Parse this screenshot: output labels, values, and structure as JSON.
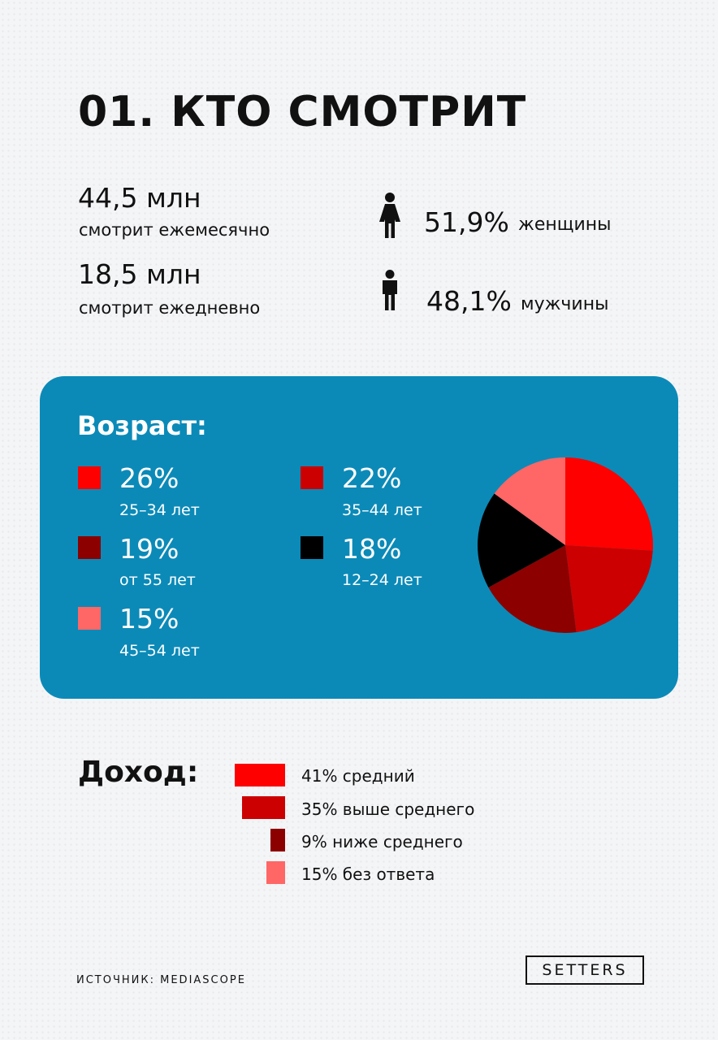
{
  "title": "01. КТО СМОТРИТ",
  "reach": {
    "monthly": {
      "value": "44,5 млн",
      "label": "смотрит ежемесячно"
    },
    "daily": {
      "value": "18,5 млн",
      "label": "смотрит ежедневно"
    }
  },
  "gender": {
    "female": {
      "pct": "51,9%",
      "label": "женщины",
      "icon": "woman-icon"
    },
    "male": {
      "pct": "48,1%",
      "label": "мужчины",
      "icon": "man-icon"
    }
  },
  "age": {
    "title": "Возраст:",
    "items": [
      {
        "pct": "26%",
        "range": "25–34 лет",
        "color": "#ff0000"
      },
      {
        "pct": "22%",
        "range": "35–44 лет",
        "color": "#cc0000"
      },
      {
        "pct": "19%",
        "range": "от 55 лет",
        "color": "#8c0000"
      },
      {
        "pct": "18%",
        "range": "12–24 лет",
        "color": "#000000"
      },
      {
        "pct": "15%",
        "range": "45–54 лет",
        "color": "#ff6666"
      }
    ]
  },
  "income": {
    "title": "Доход:",
    "items": [
      {
        "label": "41% средний",
        "color": "#ff0000"
      },
      {
        "label": "35% выше среднего",
        "color": "#cc0000"
      },
      {
        "label": "9% ниже среднего",
        "color": "#8c0000"
      },
      {
        "label": "15% без ответа",
        "color": "#ff6666"
      }
    ]
  },
  "source": "ИСТОЧНИК: MEDIASCOPE",
  "logo": "SETTERS",
  "chart_data": [
    {
      "type": "pie",
      "title": "Возраст:",
      "categories": [
        "25–34 лет",
        "35–44 лет",
        "от 55 лет",
        "12–24 лет",
        "45–54 лет"
      ],
      "values": [
        26,
        22,
        19,
        18,
        15
      ],
      "colors": [
        "#ff0000",
        "#cc0000",
        "#8c0000",
        "#000000",
        "#ff6666"
      ],
      "legend": "left"
    },
    {
      "type": "bar",
      "title": "Доход:",
      "categories": [
        "средний",
        "выше среднего",
        "ниже среднего",
        "без ответа"
      ],
      "values": [
        41,
        35,
        9,
        15
      ],
      "colors": [
        "#ff0000",
        "#cc0000",
        "#8c0000",
        "#ff6666"
      ]
    }
  ]
}
